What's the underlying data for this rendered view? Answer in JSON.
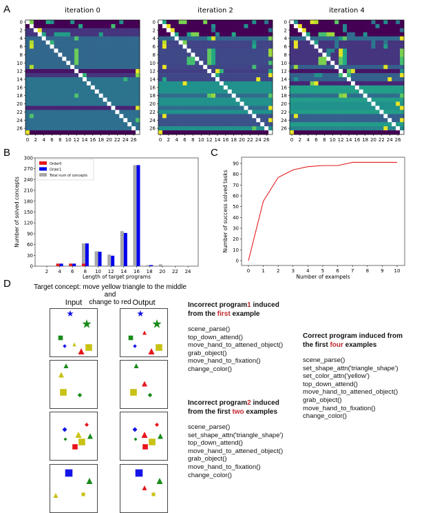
{
  "panel_labels": {
    "a": "A",
    "b": "B",
    "c": "C",
    "d": "D"
  },
  "chart_data": [
    {
      "type": "heatmap",
      "title": "iteration 0",
      "ticks": [
        0,
        2,
        4,
        6,
        8,
        10,
        12,
        14,
        16,
        18,
        20,
        22,
        24,
        26
      ],
      "size": 28,
      "diagonal": "white",
      "row_levels": [
        0,
        0,
        0.15,
        0.15,
        0.33,
        0.33,
        0.33,
        0.33,
        0.33,
        0.33,
        0.33,
        0.33,
        0.05,
        0.15,
        0.38,
        0.38,
        0.38,
        0.38,
        0.38,
        0.38,
        0.38,
        0.1,
        0.36,
        0.36,
        0.36,
        0.36,
        0.36,
        0
      ],
      "highlights": [
        [
          0,
          1,
          0.8
        ],
        [
          0,
          5,
          0.6
        ],
        [
          0,
          6,
          0.5
        ],
        [
          0,
          11,
          0.5
        ],
        [
          0,
          23,
          0.5
        ],
        [
          1,
          13,
          0.6
        ],
        [
          1,
          21,
          0.7
        ],
        [
          2,
          3,
          0.97
        ],
        [
          3,
          4,
          0.6
        ],
        [
          3,
          7,
          0.55
        ],
        [
          3,
          8,
          0.55
        ],
        [
          3,
          9,
          0.55
        ],
        [
          3,
          10,
          0.55
        ],
        [
          3,
          18,
          0.55
        ],
        [
          4,
          12,
          0.72
        ],
        [
          5,
          1,
          0.88
        ],
        [
          5,
          6,
          0.65
        ],
        [
          6,
          1,
          0.92
        ],
        [
          7,
          12,
          0.77
        ],
        [
          8,
          12,
          0.77
        ],
        [
          9,
          12,
          0.77
        ],
        [
          10,
          12,
          0.77
        ],
        [
          11,
          1,
          0.88
        ],
        [
          12,
          27,
          0.97
        ],
        [
          13,
          14,
          0.65
        ],
        [
          13,
          27,
          0.82
        ],
        [
          14,
          24,
          0.65
        ],
        [
          18,
          12,
          0.72
        ],
        [
          21,
          27,
          0.95
        ],
        [
          23,
          1,
          0.72
        ],
        [
          24,
          27,
          0.72
        ],
        [
          27,
          0,
          0.97
        ]
      ]
    },
    {
      "type": "heatmap",
      "title": "iteration 2",
      "ticks": [
        0,
        2,
        4,
        6,
        8,
        10,
        12,
        14,
        16,
        18,
        20,
        22,
        24,
        26
      ],
      "size": 28,
      "diagonal": "white",
      "row_levels": [
        0,
        0,
        0,
        0,
        0.33,
        0.2,
        0.2,
        0.22,
        0.22,
        0.22,
        0.22,
        0.2,
        0.18,
        0.22,
        0.2,
        0.5,
        0.5,
        0.5,
        0.35,
        0.5,
        0.5,
        0.35,
        0.5,
        0.25,
        0.25,
        0.25,
        0.5,
        0
      ],
      "highlights": [
        [
          0,
          1,
          0.6
        ],
        [
          0,
          5,
          0.8
        ],
        [
          0,
          6,
          0.8
        ],
        [
          0,
          11,
          0.8
        ],
        [
          0,
          23,
          0.5
        ],
        [
          0,
          26,
          0.4
        ],
        [
          1,
          2,
          0.97
        ],
        [
          1,
          13,
          0.5
        ],
        [
          1,
          21,
          0.5
        ],
        [
          2,
          3,
          0.97
        ],
        [
          2,
          13,
          0.4
        ],
        [
          2,
          27,
          0.4
        ],
        [
          3,
          4,
          0.6
        ],
        [
          3,
          7,
          0.55
        ],
        [
          3,
          8,
          0.8
        ],
        [
          3,
          9,
          0.8
        ],
        [
          3,
          14,
          0.45
        ],
        [
          3,
          18,
          0.6
        ],
        [
          4,
          12,
          0.6
        ],
        [
          4,
          13,
          0.95
        ],
        [
          4,
          27,
          0.8
        ],
        [
          5,
          1,
          0.9
        ],
        [
          5,
          6,
          0.8
        ],
        [
          5,
          23,
          0.5
        ],
        [
          6,
          1,
          0.97
        ],
        [
          6,
          23,
          0.6
        ],
        [
          7,
          12,
          0.75
        ],
        [
          7,
          13,
          0.6
        ],
        [
          7,
          27,
          0.85
        ],
        [
          8,
          12,
          0.75
        ],
        [
          8,
          13,
          0.6
        ],
        [
          8,
          27,
          0.85
        ],
        [
          9,
          7,
          0.7
        ],
        [
          9,
          8,
          0.7
        ],
        [
          9,
          12,
          0.75
        ],
        [
          9,
          13,
          0.6
        ],
        [
          10,
          7,
          0.7
        ],
        [
          10,
          8,
          0.7
        ],
        [
          10,
          12,
          0.75
        ],
        [
          10,
          13,
          0.6
        ],
        [
          10,
          27,
          0.7
        ],
        [
          11,
          1,
          0.97
        ],
        [
          11,
          23,
          0.7
        ],
        [
          12,
          14,
          0.97
        ],
        [
          12,
          15,
          0.65
        ],
        [
          12,
          27,
          0.6
        ],
        [
          13,
          14,
          0.6
        ],
        [
          13,
          27,
          0.97
        ],
        [
          14,
          1,
          0.6
        ],
        [
          14,
          24,
          0.97
        ],
        [
          15,
          6,
          0.97
        ],
        [
          18,
          12,
          0.75
        ],
        [
          18,
          13,
          0.85
        ],
        [
          18,
          27,
          0.75
        ],
        [
          21,
          27,
          0.97
        ],
        [
          23,
          1,
          0.97
        ],
        [
          24,
          27,
          0.97
        ],
        [
          26,
          23,
          0.75
        ],
        [
          27,
          0,
          0.97
        ]
      ]
    },
    {
      "type": "heatmap",
      "title": "iteration 4",
      "ticks": [
        0,
        2,
        4,
        6,
        8,
        10,
        12,
        14,
        16,
        18,
        20,
        22,
        24,
        26
      ],
      "size": 28,
      "diagonal": "white",
      "row_levels": [
        0,
        0,
        0,
        0,
        0.35,
        0.15,
        0.15,
        0.15,
        0.15,
        0.15,
        0.15,
        0.3,
        0.05,
        0.3,
        0.3,
        0.1,
        0.55,
        0.55,
        0.35,
        0.55,
        0.5,
        0.5,
        0.55,
        0.3,
        0.3,
        0.55,
        0.45,
        0
      ],
      "highlights": [
        [
          0,
          1,
          0.5
        ],
        [
          0,
          5,
          0.95
        ],
        [
          0,
          6,
          0.9
        ],
        [
          0,
          11,
          0.75
        ],
        [
          0,
          20,
          0.4
        ],
        [
          0,
          23,
          0.5
        ],
        [
          0,
          26,
          0.4
        ],
        [
          1,
          2,
          0.97
        ],
        [
          1,
          13,
          0.45
        ],
        [
          1,
          21,
          0.45
        ],
        [
          2,
          3,
          0.97
        ],
        [
          2,
          13,
          0.45
        ],
        [
          2,
          27,
          0.35
        ],
        [
          3,
          4,
          0.6
        ],
        [
          3,
          7,
          0.7
        ],
        [
          3,
          8,
          0.7
        ],
        [
          3,
          9,
          0.85
        ],
        [
          3,
          10,
          0.85
        ],
        [
          3,
          14,
          0.35
        ],
        [
          3,
          15,
          0.35
        ],
        [
          3,
          18,
          0.5
        ],
        [
          4,
          12,
          0.55
        ],
        [
          4,
          13,
          0.75
        ],
        [
          4,
          27,
          0.97
        ],
        [
          5,
          1,
          0.97
        ],
        [
          5,
          6,
          0.55
        ],
        [
          5,
          11,
          0.4
        ],
        [
          5,
          20,
          0.4
        ],
        [
          5,
          23,
          0.4
        ],
        [
          6,
          1,
          0.97
        ],
        [
          6,
          11,
          0.4
        ],
        [
          6,
          20,
          0.4
        ],
        [
          6,
          23,
          0.55
        ],
        [
          7,
          9,
          0.45
        ],
        [
          7,
          10,
          0.45
        ],
        [
          7,
          12,
          0.95
        ],
        [
          7,
          13,
          0.6
        ],
        [
          7,
          27,
          0.8
        ],
        [
          8,
          9,
          0.45
        ],
        [
          8,
          12,
          0.95
        ],
        [
          8,
          13,
          0.6
        ],
        [
          8,
          27,
          0.8
        ],
        [
          9,
          7,
          0.8
        ],
        [
          9,
          8,
          0.8
        ],
        [
          9,
          12,
          0.75
        ],
        [
          9,
          13,
          0.6
        ],
        [
          9,
          27,
          0.7
        ],
        [
          10,
          7,
          0.8
        ],
        [
          10,
          8,
          0.8
        ],
        [
          10,
          12,
          0.75
        ],
        [
          10,
          13,
          0.6
        ],
        [
          10,
          27,
          0.7
        ],
        [
          11,
          1,
          0.85
        ],
        [
          11,
          23,
          0.95
        ],
        [
          12,
          14,
          0.75
        ],
        [
          12,
          15,
          0.95
        ],
        [
          12,
          27,
          0.5
        ],
        [
          13,
          6,
          0.5
        ],
        [
          13,
          7,
          0.5
        ],
        [
          13,
          12,
          0.7
        ],
        [
          13,
          14,
          0.65
        ],
        [
          13,
          27,
          0.97
        ],
        [
          14,
          1,
          0.5
        ],
        [
          14,
          24,
          0.97
        ],
        [
          15,
          5,
          0.8
        ],
        [
          15,
          6,
          0.97
        ],
        [
          18,
          12,
          0.8
        ],
        [
          18,
          13,
          0.85
        ],
        [
          18,
          27,
          0.75
        ],
        [
          20,
          26,
          0.97
        ],
        [
          21,
          27,
          0.97
        ],
        [
          23,
          1,
          0.97
        ],
        [
          24,
          27,
          0.97
        ],
        [
          26,
          23,
          0.97
        ],
        [
          27,
          0,
          0.97
        ]
      ]
    },
    {
      "type": "bar",
      "xlabel": "Length of target programs",
      "ylabel": "Number of solved concepts",
      "ylim": [
        0,
        300
      ],
      "yticks": [
        0,
        30,
        60,
        90,
        120,
        150,
        180,
        210,
        240,
        270,
        300
      ],
      "categories": [
        2,
        4,
        6,
        8,
        10,
        12,
        14,
        16,
        18,
        20,
        22,
        24
      ],
      "legend": "top-left",
      "series": [
        {
          "name": "Order0",
          "color": "#e41a1c",
          "values": [
            0,
            7,
            7,
            7,
            0,
            0,
            0,
            0,
            0,
            0,
            0,
            0
          ]
        },
        {
          "name": "Order1",
          "color": "#0000ee",
          "values": [
            0,
            7,
            7,
            63,
            40,
            29,
            92,
            280,
            3,
            0,
            0,
            0
          ]
        },
        {
          "name": "Total num of concepts",
          "color": "#a8a8a8",
          "values": [
            0,
            7,
            7,
            63,
            41,
            32,
            97,
            280,
            3,
            5,
            1,
            1
          ]
        }
      ]
    },
    {
      "type": "line",
      "xlabel": "Number of exampels",
      "ylabel": "Number of success solved tasks",
      "x": [
        0,
        1,
        2,
        3,
        4,
        5,
        6,
        7,
        8,
        9,
        10
      ],
      "y": [
        0,
        55,
        77,
        84,
        87,
        88,
        88,
        91,
        91,
        91,
        91
      ],
      "yticks": [
        0,
        10,
        20,
        30,
        40,
        50,
        60,
        70,
        80,
        90
      ],
      "color": "#e41a1c"
    }
  ],
  "panel_d": {
    "title_line1": "Target concept: move yellow triangle to the middle and",
    "title_line2": "change to red",
    "input_label": "Input",
    "output_label": "Output",
    "prog1": {
      "h1a": "Incorrect program",
      "h1num": "1",
      "h1b": " induced",
      "h2a": "from the ",
      "h2em": "first",
      "h2b": " example",
      "lines": [
        "scene_parse()",
        "top_down_attend()",
        "move_hand_to_attened_object()",
        "grab_object()",
        "move_hand_to_fixation()",
        "change_color()"
      ]
    },
    "prog2": {
      "h1a": "Incorrect program",
      "h1num": "2",
      "h1b": " induced",
      "h2a": "from the first ",
      "h2em": "two",
      "h2b": " examples",
      "lines": [
        "scene_parse()",
        "set_shape_attn('triangle_shape')",
        "top_down_attend()",
        "move_hand_to_attened_object()",
        "grab_object()",
        "move_hand_to_fixation()",
        "change_color()"
      ]
    },
    "prog3": {
      "h1a": "Correct program induced from",
      "h2a": "the first ",
      "h2em": "four",
      "h2b": " examples",
      "lines": [
        "scene_parse()",
        "set_shape_attn('triangle_shape')",
        "set_color_attn('yellow')",
        "top_down_attend()",
        "move_hand_to_attened_object()",
        "grab_object()",
        "move_hand_to_fixation()",
        "change_color()"
      ]
    }
  }
}
